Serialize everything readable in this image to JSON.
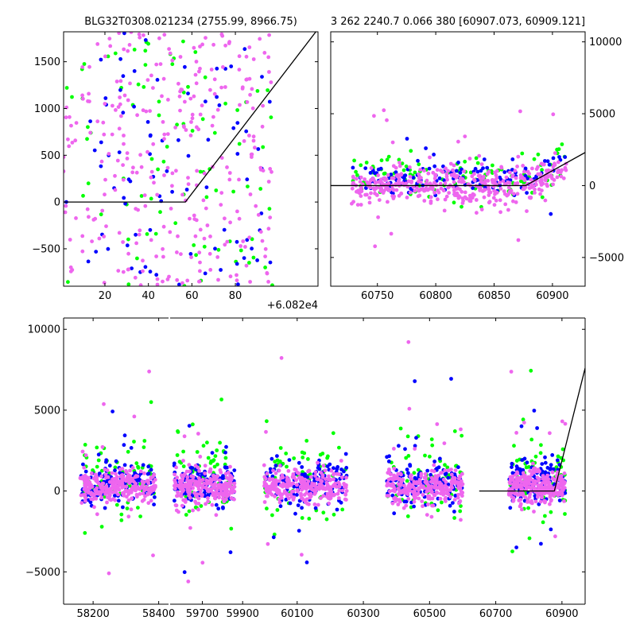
{
  "chart_data": [
    {
      "id": "zoom",
      "type": "scatter",
      "title": "BLG32T0308.021234 (2755.99, 8966.75)",
      "xlabel": "",
      "ylabel": "",
      "xlim": [
        60821,
        60938
      ],
      "ylim": [
        -900,
        1820
      ],
      "x_offset_label": "+6.082e4",
      "xticks": [
        20,
        40,
        60,
        80
      ],
      "yticks": [
        -500,
        0,
        500,
        1000,
        1500
      ],
      "colors": {
        "g": "#00ff00",
        "b": "#0000ff",
        "m": "#ee66ee",
        "model": "#000000"
      },
      "series": [
        {
          "color": "g",
          "n": 85,
          "x": [
            60821,
            60917
          ],
          "y": [
            -900,
            1820
          ],
          "dist": "uniform"
        },
        {
          "color": "b",
          "n": 85,
          "x": [
            60821,
            60917
          ],
          "y": [
            -900,
            1820
          ],
          "dist": "uniform"
        },
        {
          "color": "m",
          "n": 300,
          "x": [
            60821,
            60917
          ],
          "y": [
            -900,
            1820
          ],
          "dist": "uniform"
        }
      ],
      "model": {
        "x": [
          60821,
          60877,
          60938
        ],
        "y": [
          0,
          0,
          1850
        ]
      },
      "grid": false
    },
    {
      "id": "season",
      "type": "scatter",
      "title": "3 262 2240.7 0.066 380 [60907.073, 60909.121]",
      "xlabel": "",
      "ylabel": "",
      "xlim": [
        60710,
        60928
      ],
      "ylim": [
        -7000,
        10700
      ],
      "xticks": [
        60750,
        60800,
        60850,
        60900
      ],
      "xtick_labels": [
        "60750",
        "60800",
        "60850",
        "60900"
      ],
      "yticks": [
        -5000,
        0,
        5000,
        10000
      ],
      "ytick_labels": [
        "−5000",
        "0",
        "5000",
        "10000"
      ],
      "yaxis_side": "right",
      "colors": {
        "g": "#00ff00",
        "b": "#0000ff",
        "m": "#ee66ee",
        "model": "#000000"
      },
      "series": [
        {
          "color": "g",
          "n": 120,
          "x": [
            60728,
            60912
          ],
          "y_center": 700,
          "y_sd": 700
        },
        {
          "color": "b",
          "n": 130,
          "x": [
            60728,
            60912
          ],
          "y_center": 500,
          "y_sd": 600
        },
        {
          "color": "m",
          "n": 420,
          "x": [
            60728,
            60912
          ],
          "y_center": 0,
          "y_sd": 650
        }
      ],
      "model": {
        "x": [
          60710,
          60877,
          60928
        ],
        "y": [
          0,
          0,
          2300
        ]
      },
      "grid": false
    },
    {
      "id": "all",
      "type": "scatter",
      "title": "",
      "xlabel": "",
      "ylabel": "",
      "broken_axis": true,
      "ylim": [
        -7000,
        10700
      ],
      "yticks": [
        -5000,
        0,
        5000,
        10000
      ],
      "ytick_labels": [
        "−5000",
        "0",
        "5000",
        "10000"
      ],
      "segments": [
        {
          "xlim": [
            58110,
            58430
          ],
          "xticks": [
            58200,
            58400
          ],
          "xtick_labels": [
            "58200",
            "58400"
          ],
          "data_x": [
            58160,
            58390
          ]
        },
        {
          "xlim": [
            59540,
            59990
          ],
          "xticks": [
            59700,
            59900
          ],
          "xtick_labels": [
            "59700",
            "59900"
          ],
          "data_x": [
            59560,
            59860
          ]
        },
        {
          "xlim": [
            59990,
            60970
          ],
          "xticks": [
            60100,
            60300,
            60500,
            60700,
            60900
          ],
          "xtick_labels": [
            "60100",
            "60300",
            "60500",
            "60700",
            "60900"
          ],
          "data_x_ranges": [
            [
              60000,
              60250
            ],
            [
              60370,
              60600
            ],
            [
              60740,
              60910
            ]
          ]
        }
      ],
      "colors": {
        "g": "#00ff00",
        "b": "#0000ff",
        "m": "#ee66ee",
        "model": "#000000"
      },
      "series": [
        {
          "color": "g",
          "y_center": 700,
          "y_sd": 1300
        },
        {
          "color": "b",
          "y_center": 500,
          "y_sd": 700
        },
        {
          "color": "m",
          "y_center": 250,
          "y_sd": 500
        }
      ],
      "model": {
        "x": [
          60650,
          60877,
          60970
        ],
        "y": [
          0,
          0,
          7600
        ]
      },
      "grid": false
    }
  ]
}
